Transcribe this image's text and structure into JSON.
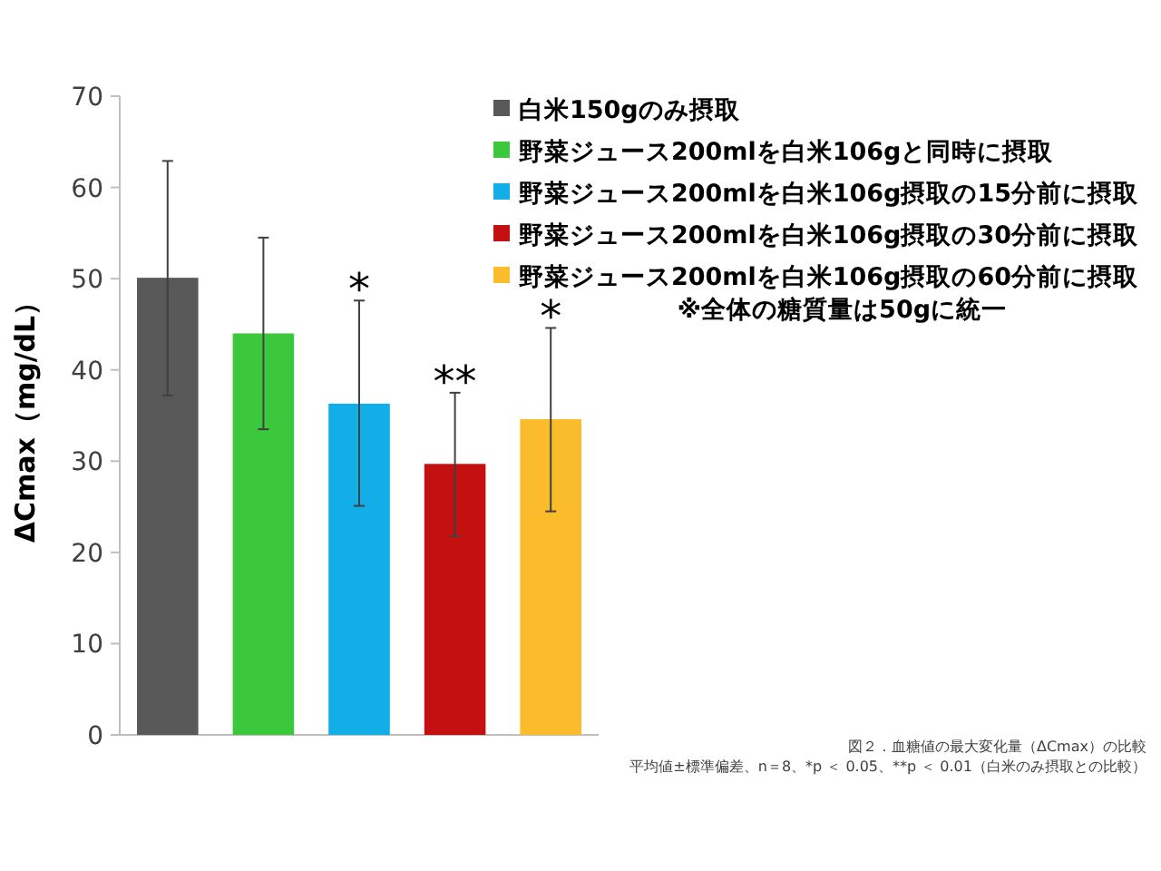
{
  "chart_data": {
    "type": "bar",
    "ylabel": "ΔCmax（mg/dL）",
    "categories": [
      null,
      null,
      null,
      null,
      null
    ],
    "ylim": [
      0,
      70
    ],
    "yticks": [
      0,
      10,
      20,
      30,
      40,
      50,
      60,
      70
    ],
    "legend": "top right",
    "series": [
      {
        "name": "白米150gのみ摂取",
        "color": "#595959",
        "values": [
          50.1,
          null,
          null,
          null,
          null
        ],
        "errors": [
          [
            37.2,
            62.9
          ],
          null,
          null,
          null,
          null
        ]
      },
      {
        "name": "野菜ジュース200mlを白米106gと同時に摂取",
        "color": "#3cc83c",
        "values": [
          null,
          44.0,
          null,
          null,
          null
        ],
        "errors": [
          null,
          [
            33.5,
            54.5
          ],
          null,
          null,
          null
        ]
      },
      {
        "name": "野菜ジュース200mlを白米106g摂取の15分前に摂取",
        "color": "#12aee8",
        "values": [
          null,
          null,
          36.3,
          null,
          null
        ],
        "errors": [
          null,
          null,
          [
            25.1,
            47.6
          ],
          null,
          null
        ],
        "value_labels": [
          null,
          null,
          "*",
          null,
          null
        ]
      },
      {
        "name": "野菜ジュース200mlを白米106g摂取の30分前に摂取",
        "color": "#c41010",
        "values": [
          null,
          null,
          null,
          29.7,
          null
        ],
        "errors": [
          null,
          null,
          null,
          [
            21.8,
            37.5
          ],
          null
        ],
        "value_labels": [
          null,
          null,
          null,
          "**",
          null
        ]
      },
      {
        "name": "野菜ジュース200mlを白米106g摂取の60分前に摂取",
        "color": "#fbbc2c",
        "values": [
          null,
          null,
          null,
          null,
          34.6
        ],
        "errors": [
          null,
          null,
          null,
          null,
          [
            24.5,
            44.6
          ]
        ],
        "value_labels": [
          null,
          null,
          null,
          null,
          "*"
        ]
      }
    ],
    "annotations": [
      "※全体の糖質量は50gに統一",
      "図２．血糖値の最大変化量（ΔCmax）の比較",
      "平均値±標準偏差、n＝8、*p ＜ 0.05、**p ＜ 0.01（白米のみ摂取との比較）"
    ]
  }
}
